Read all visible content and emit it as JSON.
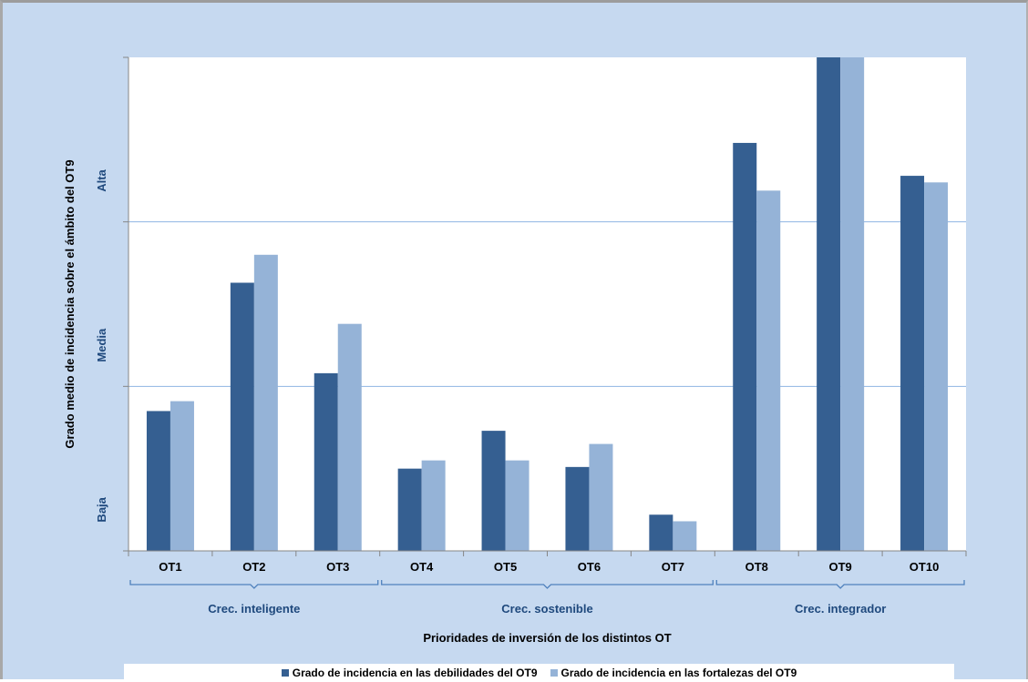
{
  "chart_data": {
    "type": "bar",
    "title": "",
    "xlabel": "Prioridades de inversión de los distintos OT",
    "ylabel": "Grado medio de incidencia sobre el ámbito del OT9",
    "ylim": [
      0,
      3
    ],
    "y_levels": [
      {
        "label": "Baja",
        "value": 0.25
      },
      {
        "label": "Media",
        "value": 1.25
      },
      {
        "label": "Alta",
        "value": 2.25
      }
    ],
    "gridlines": [
      1,
      2
    ],
    "categories": [
      "OT1",
      "OT2",
      "OT3",
      "OT4",
      "OT5",
      "OT6",
      "OT7",
      "OT8",
      "OT9",
      "OT10"
    ],
    "series": [
      {
        "name": "Grado de incidencia en las debilidades del OT9",
        "color": "#355f91",
        "values": [
          0.85,
          1.63,
          1.08,
          0.5,
          0.73,
          0.51,
          0.22,
          2.48,
          3.0,
          2.28
        ]
      },
      {
        "name": "Grado de incidencia en las fortalezas del OT9",
        "color": "#95b3d7",
        "values": [
          0.91,
          1.8,
          1.38,
          0.55,
          0.55,
          0.65,
          0.18,
          2.19,
          3.0,
          2.24
        ]
      }
    ],
    "groups": [
      {
        "label": "Crec. inteligente",
        "from": 0,
        "to": 2
      },
      {
        "label": "Crec. sostenible",
        "from": 3,
        "to": 6
      },
      {
        "label": "Crec. integrador",
        "from": 7,
        "to": 9
      }
    ],
    "grid": true,
    "legend_position": "bottom"
  }
}
